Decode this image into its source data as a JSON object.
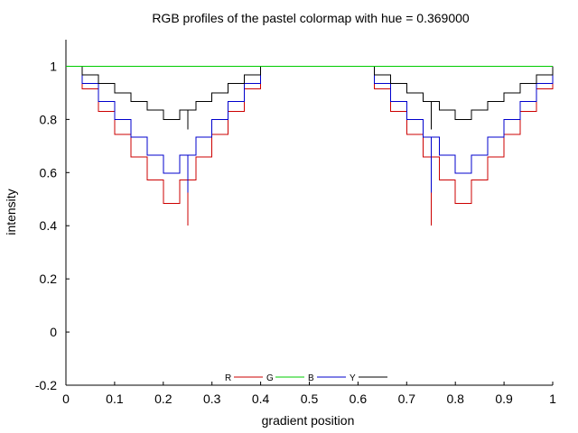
{
  "chart_data": {
    "type": "line",
    "title": "RGB profiles of the pastel colormap with hue = 0.369000",
    "xlabel": "gradient position",
    "ylabel": "intensity",
    "xlim": [
      0,
      1
    ],
    "ylim": [
      -0.2,
      1.1
    ],
    "x_ticks": [
      0,
      0.1,
      0.2,
      0.3,
      0.4,
      0.5,
      0.6,
      0.7,
      0.8,
      0.9,
      1
    ],
    "x_tick_labels": [
      "0",
      "0.1",
      "0.2",
      "0.3",
      "0.4",
      "0.5",
      "0.6",
      "0.7",
      "0.8",
      "0.9",
      "1"
    ],
    "y_ticks": [
      -0.2,
      0,
      0.2,
      0.4,
      0.6,
      0.8,
      1
    ],
    "y_tick_labels": [
      "-0.2",
      "0",
      "0.2",
      "0.4",
      "0.6",
      "0.8",
      "1"
    ],
    "grid": false,
    "legend_placement": "bottom-center",
    "step_boundaries": [
      0,
      0.0334,
      0.0667,
      0.1,
      0.1334,
      0.1667,
      0.2,
      0.2334,
      0.2667,
      0.3,
      0.3334,
      0.3667,
      0.4,
      0.4334,
      0.4667,
      0.5333,
      0.5667,
      0.6,
      0.6334,
      0.6667,
      0.7,
      0.7334,
      0.7667,
      0.8,
      0.8334,
      0.8667,
      0.9,
      0.9334,
      0.9667,
      1
    ],
    "series": [
      {
        "name": "R",
        "color": "#cc0000",
        "values": [
          1,
          0.915,
          0.83,
          0.743,
          0.658,
          0.572,
          0.484,
          0.572,
          0.658,
          0.743,
          0.83,
          0.915,
          1,
          1,
          1,
          1,
          1,
          1,
          0.915,
          0.83,
          0.743,
          0.658,
          0.572,
          0.484,
          0.572,
          0.658,
          0.743,
          0.83,
          0.915,
          1
        ],
        "dips": [
          {
            "x": 0.25,
            "y": 0.4
          },
          {
            "x": 0.75,
            "y": 0.4
          }
        ]
      },
      {
        "name": "G",
        "color": "#00cc00",
        "values": [
          1,
          1,
          1,
          1,
          1,
          1,
          1,
          1,
          1,
          1,
          1,
          1,
          1,
          1,
          1,
          1,
          1,
          1,
          1,
          1,
          1,
          1,
          1,
          1,
          1,
          1,
          1,
          1,
          1,
          1
        ],
        "dips": []
      },
      {
        "name": "B",
        "color": "#0000cc",
        "values": [
          1,
          0.935,
          0.868,
          0.8,
          0.733,
          0.665,
          0.597,
          0.665,
          0.733,
          0.8,
          0.868,
          0.935,
          1,
          1,
          1,
          1,
          1,
          1,
          0.935,
          0.868,
          0.8,
          0.733,
          0.665,
          0.597,
          0.665,
          0.733,
          0.8,
          0.868,
          0.935,
          1
        ],
        "dips": [
          {
            "x": 0.25,
            "y": 0.525
          },
          {
            "x": 0.75,
            "y": 0.525
          }
        ]
      },
      {
        "name": "Y",
        "color": "#000000",
        "values": [
          1,
          0.967,
          0.935,
          0.9,
          0.868,
          0.835,
          0.8,
          0.835,
          0.868,
          0.9,
          0.935,
          0.967,
          1,
          1,
          1,
          1,
          1,
          1,
          0.967,
          0.935,
          0.9,
          0.868,
          0.835,
          0.8,
          0.835,
          0.868,
          0.9,
          0.935,
          0.967,
          1
        ],
        "dips": [
          {
            "x": 0.25,
            "y": 0.762
          },
          {
            "x": 0.75,
            "y": 0.762
          }
        ]
      }
    ]
  }
}
